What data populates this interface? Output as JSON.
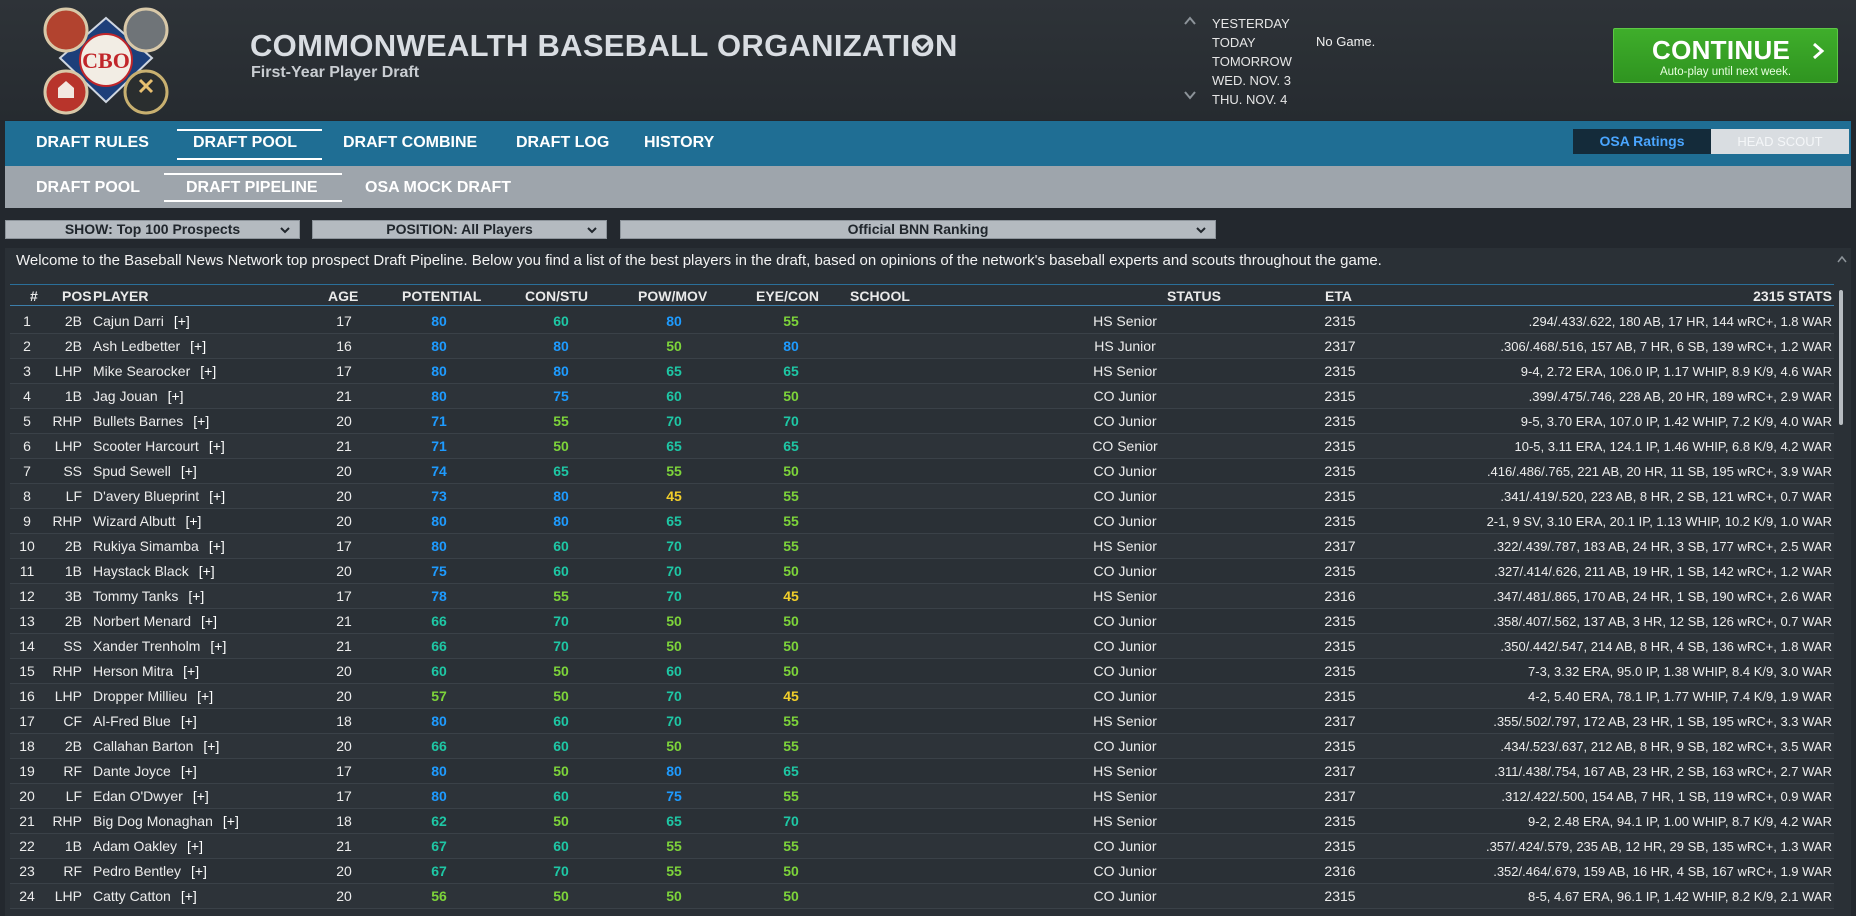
{
  "header": {
    "title": "COMMONWEALTH BASEBALL ORGANIZATION",
    "subtitle": "First-Year Player Draft",
    "dates": [
      "YESTERDAY",
      "TODAY",
      "TOMORROW",
      "WED. NOV. 3",
      "THU. NOV. 4"
    ],
    "no_game": "No Game.",
    "continue_label": "CONTINUE",
    "continue_sub": "Auto-play until next week."
  },
  "tabs_main": [
    "DRAFT RULES",
    "DRAFT POOL",
    "DRAFT COMBINE",
    "DRAFT LOG",
    "HISTORY"
  ],
  "toggle": {
    "a": "OSA Ratings",
    "b": "HEAD SCOUT"
  },
  "tabs_sub": [
    "DRAFT POOL",
    "DRAFT PIPELINE",
    "OSA MOCK DRAFT"
  ],
  "filters": {
    "show": "SHOW: Top 100 Prospects",
    "position": "POSITION: All Players",
    "ranking": "Official BNN Ranking"
  },
  "welcome": "Welcome to the Baseball News Network top prospect Draft Pipeline. Below you find a list of the best players in the draft, based on opinions of the network's baseball experts and scouts throughout the game.",
  "columns": {
    "rank": "#",
    "pos": "POS",
    "player": "PLAYER",
    "age": "AGE",
    "potential": "POTENTIAL",
    "con": "CON/STU",
    "pow": "POW/MOV",
    "eye": "EYE/CON",
    "school": "SCHOOL",
    "status": "STATUS",
    "eta": "ETA",
    "stats": "2315 STATS"
  },
  "plus_label": "[+]",
  "players": [
    {
      "rank": "1",
      "pos": "2B",
      "name": "Cajun Darri",
      "age": "17",
      "pot": "80",
      "con": "60",
      "pow": "80",
      "eye": "55",
      "status": "HS Senior",
      "eta": "2315",
      "stats": ".294/.433/.622, 180 AB, 17 HR, 144 wRC+, 1.8 WAR"
    },
    {
      "rank": "2",
      "pos": "2B",
      "name": "Ash Ledbetter",
      "age": "16",
      "pot": "80",
      "con": "80",
      "pow": "50",
      "eye": "80",
      "status": "HS Junior",
      "eta": "2317",
      "stats": ".306/.468/.516, 157 AB, 7 HR, 6 SB, 139 wRC+, 1.2 WAR"
    },
    {
      "rank": "3",
      "pos": "LHP",
      "name": "Mike Searocker",
      "age": "17",
      "pot": "80",
      "con": "80",
      "pow": "65",
      "eye": "65",
      "status": "HS Senior",
      "eta": "2315",
      "stats": "9-4, 2.72 ERA, 106.0 IP, 1.17 WHIP, 8.9 K/9, 4.6 WAR"
    },
    {
      "rank": "4",
      "pos": "1B",
      "name": "Jag Jouan",
      "age": "21",
      "pot": "80",
      "con": "75",
      "pow": "60",
      "eye": "50",
      "status": "CO Junior",
      "eta": "2315",
      "stats": ".399/.475/.746, 228 AB, 20 HR, 189 wRC+, 2.9 WAR"
    },
    {
      "rank": "5",
      "pos": "RHP",
      "name": "Bullets Barnes",
      "age": "20",
      "pot": "71",
      "con": "55",
      "pow": "70",
      "eye": "70",
      "status": "CO Junior",
      "eta": "2315",
      "stats": "9-5, 3.70 ERA, 107.0 IP, 1.42 WHIP, 7.2 K/9, 4.0 WAR"
    },
    {
      "rank": "6",
      "pos": "LHP",
      "name": "Scooter Harcourt",
      "age": "21",
      "pot": "71",
      "con": "50",
      "pow": "65",
      "eye": "65",
      "status": "CO Senior",
      "eta": "2315",
      "stats": "10-5, 3.11 ERA, 124.1 IP, 1.46 WHIP, 6.8 K/9, 4.2 WAR"
    },
    {
      "rank": "7",
      "pos": "SS",
      "name": "Spud Sewell",
      "age": "20",
      "pot": "74",
      "con": "65",
      "pow": "55",
      "eye": "50",
      "status": "CO Junior",
      "eta": "2315",
      "stats": ".416/.486/.765, 221 AB, 20 HR, 11 SB, 195 wRC+, 3.9 WAR"
    },
    {
      "rank": "8",
      "pos": "LF",
      "name": "D'avery Blueprint",
      "age": "20",
      "pot": "73",
      "con": "80",
      "pow": "45",
      "eye": "55",
      "status": "CO Junior",
      "eta": "2315",
      "stats": ".341/.419/.520, 223 AB, 8 HR, 2 SB, 121 wRC+, 0.7 WAR"
    },
    {
      "rank": "9",
      "pos": "RHP",
      "name": "Wizard Albutt",
      "age": "20",
      "pot": "80",
      "con": "80",
      "pow": "65",
      "eye": "55",
      "status": "CO Junior",
      "eta": "2315",
      "stats": "2-1, 9 SV, 3.10 ERA, 20.1 IP, 1.13 WHIP, 10.2 K/9, 1.0 WAR"
    },
    {
      "rank": "10",
      "pos": "2B",
      "name": "Rukiya Simamba",
      "age": "17",
      "pot": "80",
      "con": "60",
      "pow": "70",
      "eye": "55",
      "status": "HS Senior",
      "eta": "2317",
      "stats": ".322/.439/.787, 183 AB, 24 HR, 3 SB, 177 wRC+, 2.5 WAR"
    },
    {
      "rank": "11",
      "pos": "1B",
      "name": "Haystack Black",
      "age": "20",
      "pot": "75",
      "con": "60",
      "pow": "70",
      "eye": "50",
      "status": "CO Junior",
      "eta": "2315",
      "stats": ".327/.414/.626, 211 AB, 19 HR, 1 SB, 142 wRC+, 1.2 WAR"
    },
    {
      "rank": "12",
      "pos": "3B",
      "name": "Tommy Tanks",
      "age": "17",
      "pot": "78",
      "con": "55",
      "pow": "70",
      "eye": "45",
      "status": "HS Senior",
      "eta": "2316",
      "stats": ".347/.481/.865, 170 AB, 24 HR, 1 SB, 190 wRC+, 2.6 WAR"
    },
    {
      "rank": "13",
      "pos": "2B",
      "name": "Norbert Menard",
      "age": "21",
      "pot": "66",
      "con": "70",
      "pow": "50",
      "eye": "50",
      "status": "CO Junior",
      "eta": "2315",
      "stats": ".358/.407/.562, 137 AB, 3 HR, 12 SB, 126 wRC+, 0.7 WAR"
    },
    {
      "rank": "14",
      "pos": "SS",
      "name": "Xander Trenholm",
      "age": "21",
      "pot": "66",
      "con": "70",
      "pow": "50",
      "eye": "50",
      "status": "CO Junior",
      "eta": "2315",
      "stats": ".350/.442/.547, 214 AB, 8 HR, 4 SB, 136 wRC+, 1.8 WAR"
    },
    {
      "rank": "15",
      "pos": "RHP",
      "name": "Herson Mitra",
      "age": "20",
      "pot": "60",
      "con": "50",
      "pow": "60",
      "eye": "50",
      "status": "CO Junior",
      "eta": "2315",
      "stats": "7-3, 3.32 ERA, 95.0 IP, 1.38 WHIP, 8.4 K/9, 3.0 WAR"
    },
    {
      "rank": "16",
      "pos": "LHP",
      "name": "Dropper Millieu",
      "age": "20",
      "pot": "57",
      "con": "50",
      "pow": "70",
      "eye": "45",
      "status": "CO Junior",
      "eta": "2315",
      "stats": "4-2, 5.40 ERA, 78.1 IP, 1.77 WHIP, 7.4 K/9, 1.9 WAR"
    },
    {
      "rank": "17",
      "pos": "CF",
      "name": "Al-Fred Blue",
      "age": "18",
      "pot": "80",
      "con": "60",
      "pow": "70",
      "eye": "55",
      "status": "HS Senior",
      "eta": "2317",
      "stats": ".355/.502/.797, 172 AB, 23 HR, 1 SB, 195 wRC+, 3.3 WAR"
    },
    {
      "rank": "18",
      "pos": "2B",
      "name": "Callahan Barton",
      "age": "20",
      "pot": "66",
      "con": "60",
      "pow": "50",
      "eye": "55",
      "status": "CO Junior",
      "eta": "2315",
      "stats": ".434/.523/.637, 212 AB, 8 HR, 9 SB, 182 wRC+, 3.5 WAR"
    },
    {
      "rank": "19",
      "pos": "RF",
      "name": "Dante Joyce",
      "age": "17",
      "pot": "80",
      "con": "50",
      "pow": "80",
      "eye": "65",
      "status": "HS Senior",
      "eta": "2317",
      "stats": ".311/.438/.754, 167 AB, 23 HR, 2 SB, 163 wRC+, 2.7 WAR"
    },
    {
      "rank": "20",
      "pos": "LF",
      "name": "Edan O'Dwyer",
      "age": "17",
      "pot": "80",
      "con": "60",
      "pow": "75",
      "eye": "55",
      "status": "HS Senior",
      "eta": "2317",
      "stats": ".312/.422/.500, 154 AB, 7 HR, 1 SB, 119 wRC+, 0.9 WAR"
    },
    {
      "rank": "21",
      "pos": "RHP",
      "name": "Big Dog Monaghan",
      "age": "18",
      "pot": "62",
      "con": "50",
      "pow": "65",
      "eye": "70",
      "status": "HS Senior",
      "eta": "2315",
      "stats": "9-2, 2.48 ERA, 94.1 IP, 1.00 WHIP, 8.7 K/9, 4.2 WAR"
    },
    {
      "rank": "22",
      "pos": "1B",
      "name": "Adam Oakley",
      "age": "21",
      "pot": "67",
      "con": "60",
      "pow": "55",
      "eye": "55",
      "status": "CO Junior",
      "eta": "2315",
      "stats": ".357/.424/.579, 235 AB, 12 HR, 29 SB, 135 wRC+, 1.3 WAR"
    },
    {
      "rank": "23",
      "pos": "RF",
      "name": "Pedro Bentley",
      "age": "20",
      "pot": "67",
      "con": "70",
      "pow": "55",
      "eye": "50",
      "status": "CO Junior",
      "eta": "2316",
      "stats": ".352/.464/.679, 159 AB, 16 HR, 4 SB, 167 wRC+, 1.9 WAR"
    },
    {
      "rank": "24",
      "pos": "LHP",
      "name": "Catty Catton",
      "age": "20",
      "pot": "56",
      "con": "50",
      "pow": "50",
      "eye": "50",
      "status": "CO Junior",
      "eta": "2315",
      "stats": "8-5, 4.67 ERA, 96.1 IP, 1.42 WHIP, 8.2 K/9, 2.1 WAR"
    }
  ]
}
